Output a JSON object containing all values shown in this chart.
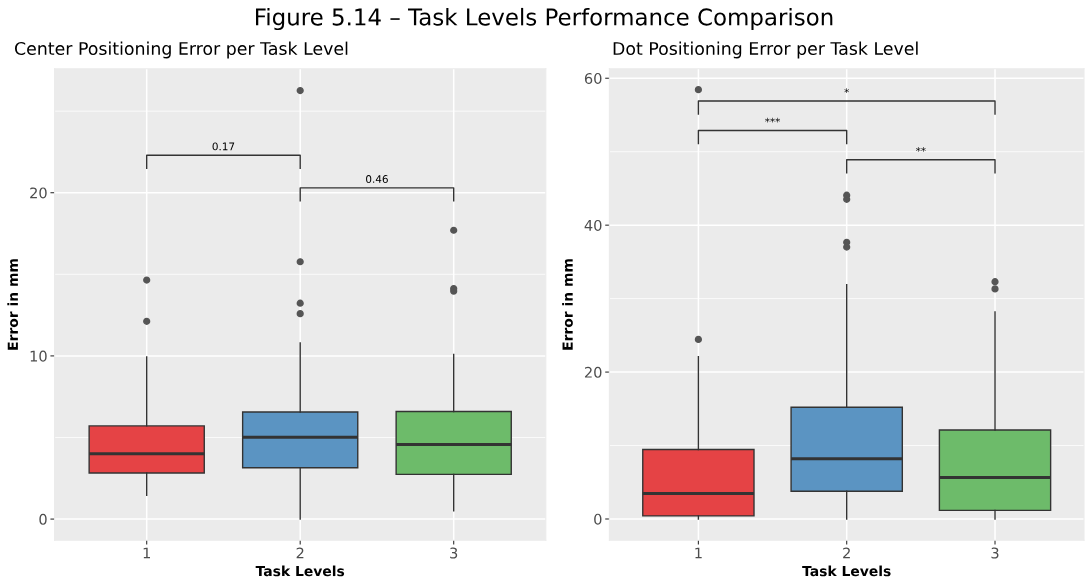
{
  "chart_data": [
    {
      "type": "box",
      "title": "Center Positioning Error per Task Level",
      "xlabel": "Task Levels",
      "ylabel": "Error in mm",
      "categories": [
        "1",
        "2",
        "3"
      ],
      "colors": [
        "#e54345",
        "#5b94c2",
        "#6dbb6a"
      ],
      "boxes": [
        {
          "low": 1.45,
          "q1": 2.82,
          "median": 4.0,
          "q3": 5.71,
          "high": 9.94,
          "outliers": [
            14.65,
            12.12
          ]
        },
        {
          "low": 0,
          "q1": 3.15,
          "median": 5.01,
          "q3": 6.56,
          "high": 10.79,
          "outliers": [
            26.26,
            15.77,
            13.23,
            12.59
          ]
        },
        {
          "low": 0.51,
          "q1": 2.74,
          "median": 4.57,
          "q3": 6.59,
          "high": 10.09,
          "outliers": [
            17.7,
            14.13,
            13.97
          ]
        }
      ],
      "ylim": [
        -1.3,
        27.6
      ],
      "yticks": [
        0,
        10,
        20
      ],
      "grid": true,
      "annotations": [
        "Figure 5.14 – Task Levels Performance Comparison",
        "0.17",
        "0.46"
      ]
    },
    {
      "type": "box",
      "title": "Dot Positioning Error per Task Level",
      "xlabel": "Task Levels",
      "ylabel": "Error in mm",
      "categories": [
        "1",
        "2",
        "3"
      ],
      "colors": [
        "#e54345",
        "#5b94c2",
        "#6dbb6a"
      ],
      "boxes": [
        {
          "low": 0,
          "q1": 0.42,
          "median": 3.48,
          "q3": 9.47,
          "high": 22.1,
          "outliers": [
            24.45,
            58.45
          ]
        },
        {
          "low": 0,
          "q1": 3.77,
          "median": 8.19,
          "q3": 15.21,
          "high": 31.88,
          "outliers": [
            44.08,
            43.52,
            37.67,
            37.02
          ]
        },
        {
          "low": 0,
          "q1": 1.18,
          "median": 5.65,
          "q3": 12.11,
          "high": 28.2,
          "outliers": [
            32.3,
            31.32
          ]
        }
      ],
      "ylim": [
        -2.9,
        61.3
      ],
      "yticks": [
        0,
        20,
        40,
        60
      ],
      "grid": true,
      "annotations": [
        "*",
        "***",
        "**"
      ]
    }
  ]
}
